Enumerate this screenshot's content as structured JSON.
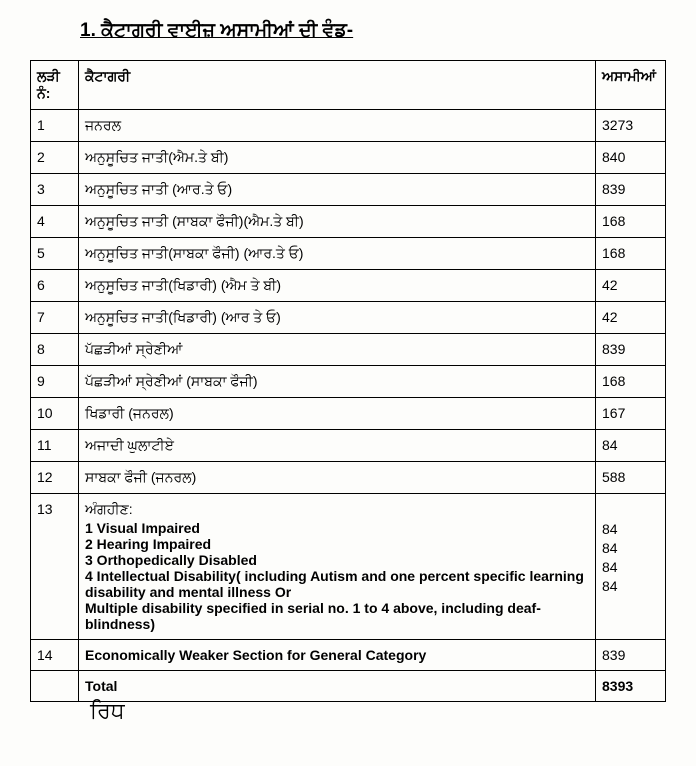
{
  "title": "1. ਕੈਟਾਗਰੀ ਵਾਈਜ਼ ਅਸਾਮੀਆਂ ਦੀ ਵੰਡ-",
  "columns": {
    "sr": "ਲੜੀ ਨੰ:",
    "category": "ਕੈਟਾਗਰੀ",
    "posts": "ਅਸਾਮੀਆਂ"
  },
  "rows": [
    {
      "sr": "1",
      "cat": "ਜਨਰਲ",
      "num": "3273"
    },
    {
      "sr": "2",
      "cat": "ਅਨੁਸੂਚਿਤ ਜਾਤੀ(ਐਮ.ਤੇ ਬੀ)",
      "num": "840"
    },
    {
      "sr": "3",
      "cat": "ਅਨੁਸੂਚਿਤ ਜਾਤੀ (ਆਰ.ਤੇ ਓ)",
      "num": "839"
    },
    {
      "sr": "4",
      "cat": "ਅਨੁਸੂਚਿਤ ਜਾਤੀ (ਸਾਬਕਾ ਫੌਜੀ)(ਐਮ.ਤੇ ਬੀ)",
      "num": "168"
    },
    {
      "sr": "5",
      "cat": "ਅਨੁਸੂਚਿਤ ਜਾਤੀ(ਸਾਬਕਾ ਫੌਜੀ) (ਆਰ.ਤੇ ਓ)",
      "num": "168"
    },
    {
      "sr": "6",
      "cat": "ਅਨੁਸੂਚਿਤ ਜਾਤੀ(ਖਿਡਾਰੀ) (ਐਮ ਤੇ ਬੀ)",
      "num": "42"
    },
    {
      "sr": "7",
      "cat": "ਅਨੁਸੂਚਿਤ ਜਾਤੀ(ਖਿਡਾਰੀ) (ਆਰ ਤੇ ਓ)",
      "num": "42"
    },
    {
      "sr": "8",
      "cat": "ਪੱਛੜੀਆਂ ਸ੍ਰੇਣੀਆਂ",
      "num": "839"
    },
    {
      "sr": "9",
      "cat": "ਪੱਛੜੀਆਂ ਸ੍ਰੇਣੀਆਂ (ਸਾਬਕਾ ਫੌਜੀ)",
      "num": "168"
    },
    {
      "sr": "10",
      "cat": "ਖਿਡਾਰੀ (ਜਨਰਲ)",
      "num": "167"
    },
    {
      "sr": "11",
      "cat": "ਅਜਾਦੀ ਘੁਲਾਟੀਏ",
      "num": "84"
    },
    {
      "sr": "12",
      "cat": "ਸਾਬਕਾ ਫੌਜੀ (ਜਨਰਲ)",
      "num": "588"
    }
  ],
  "row13": {
    "sr": "13",
    "head": "ਅੰਗਹੀਣ:",
    "lines": [
      "1  Visual Impaired",
      "2  Hearing  Impaired",
      "3  Orthopedically Disabled",
      "4  Intellectual Disability( including Autism and one percent specific learning disability and mental illness Or",
      "Multiple disability specified in serial no. 1 to 4 above, including deaf-blindness)"
    ],
    "nums": [
      "84",
      "84",
      "84",
      "84"
    ]
  },
  "row14": {
    "sr": "14",
    "cat": "Economically Weaker Section for General Category",
    "num": "839"
  },
  "total": {
    "label": "Total",
    "num": "8393"
  }
}
